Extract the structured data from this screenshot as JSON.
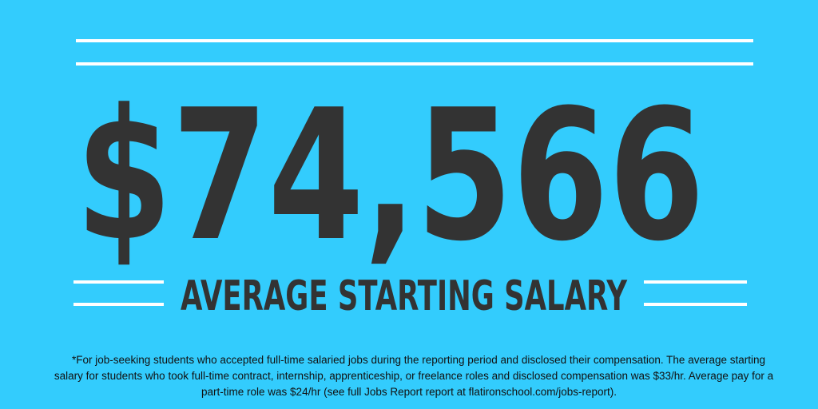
{
  "headline": "$74,566",
  "subtitle": "AVERAGE STARTING SALARY",
  "footnote": [
    "*For job-seeking students who accepted full-time salaried jobs during the reporting period and disclosed their compensation. The average starting",
    "salary for students who took full-time contract, internship, apprenticeship, or freelance roles and disclosed compensation was $33/hr. Average pay for a",
    "part-time role was $24/hr (see full Jobs Report report at flatironschool.com/jobs-report)."
  ]
}
